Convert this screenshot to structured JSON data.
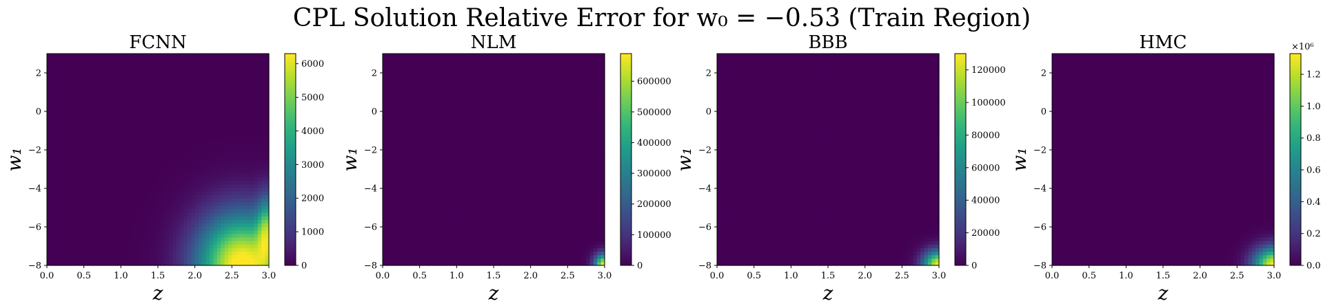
{
  "figure": {
    "title": "CPL Solution Relative Error for w₀ = −0.53 (Train Region)"
  },
  "chart_data": [
    {
      "type": "heatmap",
      "title": "FCNN",
      "xlabel": "z",
      "ylabel": "w₁",
      "xlim": [
        0.0,
        3.0
      ],
      "ylim": [
        -8,
        3
      ],
      "x_ticks": [
        "0.0",
        "0.5",
        "1.0",
        "1.5",
        "2.0",
        "2.5",
        "3.0"
      ],
      "y_ticks": [
        "2",
        "0",
        "−2",
        "−4",
        "−6",
        "−8"
      ],
      "colorbar": {
        "min": 0,
        "max": 6300,
        "ticks": [
          "0",
          "1000",
          "2000",
          "3000",
          "4000",
          "5000",
          "6000"
        ],
        "multiplier": ""
      },
      "colormap": "viridis",
      "pattern": "Relative error near 0 almost everywhere; large errors in lower-right corner (z ≈ 2.0–3.0, w₁ ≈ −8 to −5), peaking ~6300 near z ≈ 2.7, w₁ ≈ −8"
    },
    {
      "type": "heatmap",
      "title": "NLM",
      "xlabel": "z",
      "ylabel": "w₁",
      "xlim": [
        0.0,
        3.0
      ],
      "ylim": [
        -8,
        3
      ],
      "x_ticks": [
        "0.0",
        "0.5",
        "1.0",
        "1.5",
        "2.0",
        "2.5",
        "3.0"
      ],
      "y_ticks": [
        "2",
        "0",
        "−2",
        "−4",
        "−6",
        "−8"
      ],
      "colorbar": {
        "min": 0,
        "max": 690000,
        "ticks": [
          "0",
          "100000",
          "200000",
          "300000",
          "400000",
          "500000",
          "600000"
        ],
        "multiplier": ""
      },
      "colormap": "viridis",
      "pattern": "Near 0 everywhere except bottom-right corner (z ≈ 2.8–3.0, w₁ ≈ −8 to −7), peak ~690000 at z = 3.0, w₁ = −8"
    },
    {
      "type": "heatmap",
      "title": "BBB",
      "xlabel": "z",
      "ylabel": "w₁",
      "xlim": [
        0.0,
        3.0
      ],
      "ylim": [
        -8,
        3
      ],
      "x_ticks": [
        "0.0",
        "0.5",
        "1.0",
        "1.5",
        "2.0",
        "2.5",
        "3.0"
      ],
      "y_ticks": [
        "2",
        "0",
        "−2",
        "−4",
        "−6",
        "−8"
      ],
      "colorbar": {
        "min": 0,
        "max": 130000,
        "ticks": [
          "0",
          "20000",
          "40000",
          "60000",
          "80000",
          "100000",
          "120000"
        ],
        "multiplier": ""
      },
      "colormap": "viridis",
      "pattern": "Near 0 everywhere except bottom-right corner (z ≈ 2.6–3.0, w₁ ≈ −8 to −7), peak ~130000 at z = 3.0, w₁ = −8"
    },
    {
      "type": "heatmap",
      "title": "HMC",
      "xlabel": "z",
      "ylabel": "w₁",
      "xlim": [
        0.0,
        3.0
      ],
      "ylim": [
        -8,
        3
      ],
      "x_ticks": [
        "0.0",
        "0.5",
        "1.0",
        "1.5",
        "2.0",
        "2.5",
        "3.0"
      ],
      "y_ticks": [
        "2",
        "0",
        "−2",
        "−4",
        "−6",
        "−8"
      ],
      "colorbar": {
        "min": 0,
        "max": 1.33,
        "ticks": [
          "0.0",
          "0.2",
          "0.4",
          "0.6",
          "0.8",
          "1.0",
          "1.2"
        ],
        "multiplier": "×10⁶"
      },
      "colormap": "viridis",
      "pattern": "Near 0 everywhere except bottom-right corner (z ≈ 2.5–3.0, w₁ ≈ −8 to −6.5), peak ~1.33×10⁶ at z = 3.0, w₁ = −8"
    }
  ]
}
